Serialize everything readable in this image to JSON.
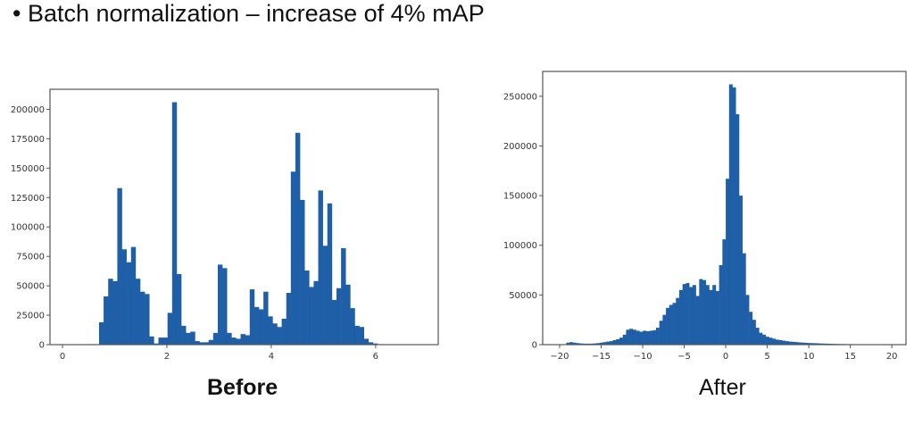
{
  "slide": {
    "title": "• Batch normalization – increase of 4% mAP"
  },
  "colors": {
    "bar": "#1f5fa8",
    "axis": "#555555"
  },
  "chart_data": [
    {
      "type": "bar",
      "name": "before",
      "caption": "Before",
      "title": "",
      "xlabel": "",
      "ylabel": "",
      "bin_start": 0.7,
      "bin_width": 0.0875,
      "values": [
        19000,
        41000,
        56000,
        54000,
        133000,
        81000,
        70000,
        83000,
        56000,
        45000,
        43000,
        7000,
        1000,
        6000,
        6000,
        27000,
        206000,
        60000,
        16000,
        10000,
        11000,
        3000,
        2000,
        2000,
        4000,
        10000,
        68000,
        65000,
        10000,
        6000,
        5000,
        9000,
        8000,
        47000,
        32000,
        30000,
        45000,
        24000,
        18000,
        15000,
        22000,
        44000,
        147000,
        180000,
        123000,
        63000,
        49000,
        54000,
        131000,
        84000,
        120000,
        38000,
        48000,
        82000,
        51000,
        31000,
        16000,
        15000,
        5000,
        2000,
        1000
      ],
      "xlim": [
        -0.24,
        7.2
      ],
      "ylim": [
        0,
        217000
      ],
      "xticks": [
        "0",
        "2",
        "4",
        "6"
      ],
      "xtick_values": [
        0,
        2,
        4,
        6
      ],
      "yticks": [
        "0",
        "25000",
        "50000",
        "75000",
        "100000",
        "125000",
        "150000",
        "175000",
        "200000"
      ],
      "ytick_values": [
        0,
        25000,
        50000,
        75000,
        100000,
        125000,
        150000,
        175000,
        200000
      ],
      "grid": false
    },
    {
      "type": "bar",
      "name": "after",
      "caption": "After",
      "title": "",
      "xlabel": "",
      "ylabel": "",
      "bin_start": -19.2,
      "bin_width": 0.4,
      "values": [
        2000,
        2500,
        2000,
        1500,
        1200,
        1000,
        1000,
        1000,
        1200,
        1500,
        2000,
        2500,
        3000,
        3500,
        4500,
        5500,
        7000,
        10000,
        15000,
        16000,
        15000,
        14000,
        13000,
        14000,
        13500,
        14000,
        14500,
        17000,
        24000,
        30000,
        37000,
        40000,
        42000,
        47000,
        55000,
        61000,
        62000,
        58000,
        60000,
        49000,
        66000,
        65000,
        60000,
        55000,
        60000,
        54000,
        80000,
        106000,
        167000,
        262000,
        259000,
        232000,
        150000,
        92000,
        50000,
        33000,
        25000,
        17000,
        12000,
        10000,
        8000,
        7000,
        6000,
        5000,
        4500,
        4000,
        3500,
        3000,
        2800,
        2500,
        2200,
        2000,
        1800,
        1600,
        1500,
        1400,
        1200,
        1100,
        1000,
        900,
        800,
        700,
        600,
        600,
        500,
        500,
        400,
        300,
        200
      ],
      "xlim": [
        -22.04,
        21.7
      ],
      "ylim": [
        0,
        275000
      ],
      "xticks": [
        "−20",
        "−15",
        "−10",
        "−5",
        "0",
        "5",
        "10",
        "15",
        "20"
      ],
      "xtick_values": [
        -20,
        -15,
        -10,
        -5,
        0,
        5,
        10,
        15,
        20
      ],
      "yticks": [
        "0",
        "50000",
        "100000",
        "150000",
        "200000",
        "250000"
      ],
      "ytick_values": [
        0,
        50000,
        100000,
        150000,
        200000,
        250000
      ],
      "grid": false
    }
  ]
}
